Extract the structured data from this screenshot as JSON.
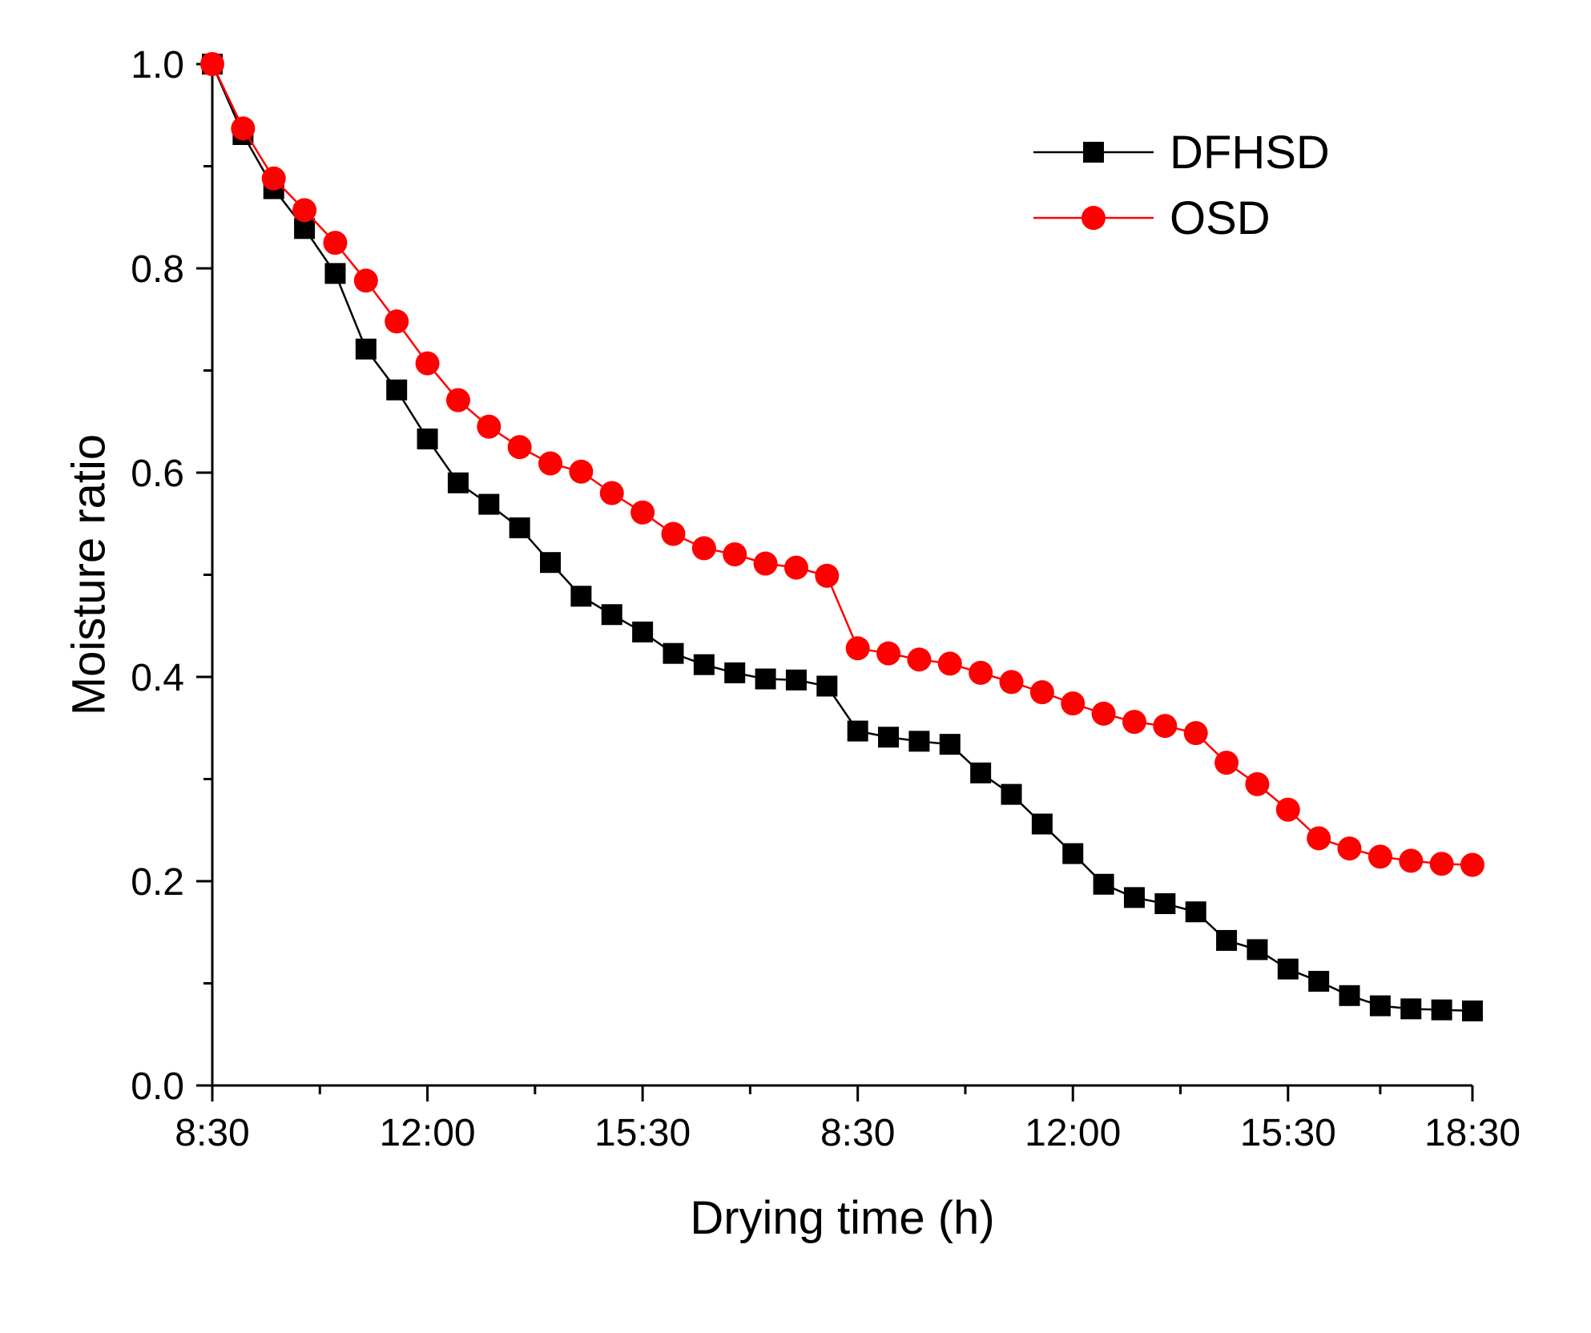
{
  "chart_data": {
    "type": "line",
    "title": "",
    "xlabel": "Drying time (h)",
    "ylabel": "Moisture ratio",
    "xlim": [
      0,
      41
    ],
    "ylim": [
      0.0,
      1.0
    ],
    "x_ticks": [
      {
        "x": 0,
        "label": "8:30"
      },
      {
        "x": 7,
        "label": "12:00"
      },
      {
        "x": 14,
        "label": "15:30"
      },
      {
        "x": 21,
        "label": "8:30"
      },
      {
        "x": 28,
        "label": "12:00"
      },
      {
        "x": 35,
        "label": "15:30"
      },
      {
        "x": 41,
        "label": "18:30"
      }
    ],
    "y_ticks": [
      {
        "y": 0.0,
        "label": "0.0"
      },
      {
        "y": 0.2,
        "label": "0.2"
      },
      {
        "y": 0.4,
        "label": "0.4"
      },
      {
        "y": 0.6,
        "label": "0.6"
      },
      {
        "y": 0.8,
        "label": "0.8"
      },
      {
        "y": 1.0,
        "label": "1.0"
      }
    ],
    "legend_position": "top-right",
    "series": [
      {
        "name": "DFHSD",
        "color": "#000000",
        "marker": "square",
        "values": [
          1.0,
          0.931,
          0.878,
          0.839,
          0.795,
          0.721,
          0.681,
          0.633,
          0.59,
          0.569,
          0.546,
          0.512,
          0.479,
          0.461,
          0.444,
          0.423,
          0.412,
          0.404,
          0.398,
          0.397,
          0.391,
          0.347,
          0.341,
          0.337,
          0.334,
          0.306,
          0.285,
          0.256,
          0.227,
          0.197,
          0.184,
          0.178,
          0.17,
          0.142,
          0.133,
          0.114,
          0.102,
          0.088,
          0.078,
          0.075,
          0.074,
          0.073
        ]
      },
      {
        "name": "OSD",
        "color": "#ff0000",
        "marker": "circle",
        "values": [
          1.0,
          0.937,
          0.888,
          0.857,
          0.825,
          0.788,
          0.748,
          0.707,
          0.671,
          0.645,
          0.625,
          0.609,
          0.601,
          0.58,
          0.561,
          0.54,
          0.526,
          0.52,
          0.511,
          0.507,
          0.499,
          0.428,
          0.423,
          0.417,
          0.413,
          0.404,
          0.395,
          0.385,
          0.374,
          0.364,
          0.356,
          0.352,
          0.345,
          0.316,
          0.295,
          0.27,
          0.242,
          0.232,
          0.224,
          0.22,
          0.217,
          0.216
        ]
      }
    ]
  }
}
